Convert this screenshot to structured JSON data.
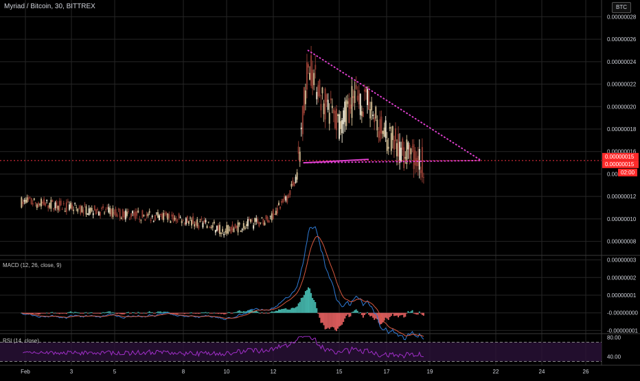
{
  "header": {
    "title": "Myriad / Bitcoin, 30, BITTREX",
    "currency_button": "BTC"
  },
  "colors": {
    "background": "#000000",
    "grid": "#262626",
    "up_candle": "#c9b48c",
    "down_candle": "#8c3a30",
    "trendline": "#e040d0",
    "horizontal_line": "#ff3344",
    "price_badge": "#ff2a2a",
    "macd_line": "#2f7bd6",
    "signal_line": "#d9593f",
    "hist_up": "#4fd1c5",
    "hist_down": "#ff6b6b",
    "rsi_line": "#a12fc9",
    "rsi_band": "#2a1238"
  },
  "chart_data": [
    {
      "type": "candlestick",
      "pane": "price",
      "title": "Myriad / Bitcoin, 30, BITTREX",
      "x_ticks": [
        "Feb",
        "3",
        "5",
        "8",
        "10",
        "12",
        "15",
        "17",
        "19",
        "22",
        "24",
        "26"
      ],
      "y_ticks": [
        "0.00000028",
        "0.00000026",
        "0.00000024",
        "0.00000022",
        "0.00000020",
        "0.00000018",
        "0.00000016",
        "0.00000014",
        "0.00000012",
        "0.00000010",
        "0.00000008"
      ],
      "ylim": [
        7e-08,
        2.9e-07
      ],
      "price_labels": [
        "0.00000015",
        "0.00000015",
        "02:00"
      ],
      "trend": [
        {
          "day": 1,
          "price": 1.15e-07
        },
        {
          "day": 5,
          "price": 1.05e-07
        },
        {
          "day": 8,
          "price": 1e-07
        },
        {
          "day": 10,
          "price": 9e-08
        },
        {
          "day": 12,
          "price": 1e-07
        },
        {
          "day": 12.8,
          "price": 1.18e-07
        },
        {
          "day": 13.3,
          "price": 1.4e-07
        },
        {
          "day": 13.8,
          "price": 2.4e-07
        },
        {
          "day": 14.5,
          "price": 2.05e-07
        },
        {
          "day": 15.2,
          "price": 1.85e-07
        },
        {
          "day": 16.0,
          "price": 2.1e-07
        },
        {
          "day": 16.6,
          "price": 2e-07
        },
        {
          "day": 17.3,
          "price": 1.75e-07
        },
        {
          "day": 18.2,
          "price": 1.6e-07
        },
        {
          "day": 19.2,
          "price": 1.5e-07
        }
      ],
      "annotations": {
        "descending_trendline": [
          {
            "day": 13.8,
            "price": 2.5e-07
          },
          {
            "day": 21.8,
            "price": 1.52e-07
          }
        ],
        "support_line": [
          {
            "day": 13.6,
            "price": 1.5e-07
          },
          {
            "day": 21.8,
            "price": 1.52e-07
          }
        ],
        "short_line": [
          {
            "day": 13.6,
            "price": 1.5e-07
          },
          {
            "day": 16.6,
            "price": 1.53e-07
          }
        ],
        "horizontal_level": 1.52e-07
      }
    },
    {
      "type": "line",
      "pane": "macd",
      "title": "MACD (12, 26, close, 9)",
      "y_ticks": [
        "0.00000003",
        "0.00000002",
        "0.00000001",
        "-0.00000000",
        "-0.00000001"
      ],
      "ylim": [
        -1.1e-08,
        3.1e-08
      ]
    },
    {
      "type": "line",
      "pane": "rsi",
      "title": "RSI (14, close)",
      "y_ticks": [
        "80.00",
        "40.00"
      ],
      "ylim": [
        25,
        85
      ],
      "bands": [
        70,
        30
      ]
    }
  ]
}
